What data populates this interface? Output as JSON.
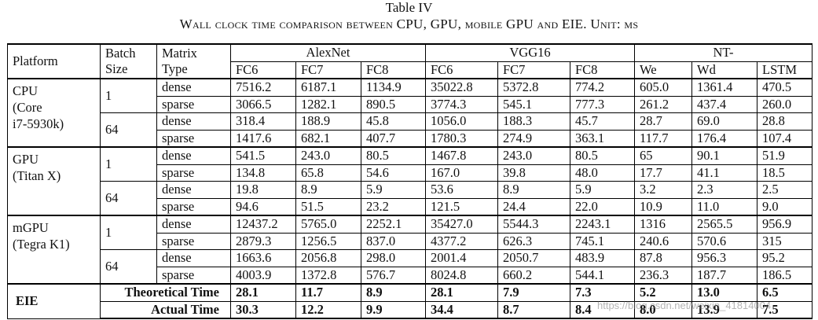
{
  "caption": {
    "label": "Table IV",
    "title": "Wall clock time comparison between CPU, GPU, mobile GPU and EIE. Unit: μs"
  },
  "header": {
    "platform": "Platform",
    "batch_line1": "Batch",
    "batch_line2": "Size",
    "matrix_line1": "Matrix",
    "matrix_line2": "Type",
    "groups": [
      "AlexNet",
      "VGG16",
      "NT-"
    ],
    "columns": [
      "FC6",
      "FC7",
      "FC8",
      "FC6",
      "FC7",
      "FC8",
      "We",
      "Wd",
      "LSTM"
    ]
  },
  "platforms": [
    {
      "name_lines": [
        "CPU",
        "(Core",
        "i7-5930k)"
      ],
      "batches": [
        {
          "size": "1",
          "rows": [
            {
              "type": "dense",
              "values": [
                "7516.2",
                "6187.1",
                "1134.9",
                "35022.8",
                "5372.8",
                "774.2",
                "605.0",
                "1361.4",
                "470.5"
              ]
            },
            {
              "type": "sparse",
              "values": [
                "3066.5",
                "1282.1",
                "890.5",
                "3774.3",
                "545.1",
                "777.3",
                "261.2",
                "437.4",
                "260.0"
              ]
            }
          ]
        },
        {
          "size": "64",
          "rows": [
            {
              "type": "dense",
              "values": [
                "318.4",
                "188.9",
                "45.8",
                "1056.0",
                "188.3",
                "45.7",
                "28.7",
                "69.0",
                "28.8"
              ]
            },
            {
              "type": "sparse",
              "values": [
                "1417.6",
                "682.1",
                "407.7",
                "1780.3",
                "274.9",
                "363.1",
                "117.7",
                "176.4",
                "107.4"
              ]
            }
          ]
        }
      ]
    },
    {
      "name_lines": [
        "GPU",
        "(Titan X)"
      ],
      "batches": [
        {
          "size": "1",
          "rows": [
            {
              "type": "dense",
              "values": [
                "541.5",
                "243.0",
                "80.5",
                "1467.8",
                "243.0",
                "80.5",
                "65",
                "90.1",
                "51.9"
              ]
            },
            {
              "type": "sparse",
              "values": [
                "134.8",
                "65.8",
                "54.6",
                "167.0",
                "39.8",
                "48.0",
                "17.7",
                "41.1",
                "18.5"
              ]
            }
          ]
        },
        {
          "size": "64",
          "rows": [
            {
              "type": "dense",
              "values": [
                "19.8",
                "8.9",
                "5.9",
                "53.6",
                "8.9",
                "5.9",
                "3.2",
                "2.3",
                "2.5"
              ]
            },
            {
              "type": "sparse",
              "values": [
                "94.6",
                "51.5",
                "23.2",
                "121.5",
                "24.4",
                "22.0",
                "10.9",
                "11.0",
                "9.0"
              ]
            }
          ]
        }
      ]
    },
    {
      "name_lines": [
        "mGPU",
        "(Tegra K1)"
      ],
      "batches": [
        {
          "size": "1",
          "rows": [
            {
              "type": "dense",
              "values": [
                "12437.2",
                "5765.0",
                "2252.1",
                "35427.0",
                "5544.3",
                "2243.1",
                "1316",
                "2565.5",
                "956.9"
              ]
            },
            {
              "type": "sparse",
              "values": [
                "2879.3",
                "1256.5",
                "837.0",
                "4377.2",
                "626.3",
                "745.1",
                "240.6",
                "570.6",
                "315"
              ]
            }
          ]
        },
        {
          "size": "64",
          "rows": [
            {
              "type": "dense",
              "values": [
                "1663.6",
                "2056.8",
                "298.0",
                "2001.4",
                "2050.7",
                "483.9",
                "87.8",
                "956.3",
                "95.2"
              ]
            },
            {
              "type": "sparse",
              "values": [
                "4003.9",
                "1372.8",
                "576.7",
                "8024.8",
                "660.2",
                "544.1",
                "236.3",
                "187.7",
                "186.5"
              ]
            }
          ]
        }
      ]
    }
  ],
  "eie": {
    "name": "EIE",
    "rows": [
      {
        "label": "Theoretical Time",
        "values": [
          "28.1",
          "11.7",
          "8.9",
          "28.1",
          "7.9",
          "7.3",
          "5.2",
          "13.0",
          "6.5"
        ]
      },
      {
        "label": "Actual Time",
        "values": [
          "30.3",
          "12.2",
          "9.9",
          "34.4",
          "8.7",
          "8.4",
          "8.0",
          "13.9",
          "7.5"
        ]
      }
    ]
  },
  "watermark": "https://blog.csdn.net/weixin_41814004"
}
